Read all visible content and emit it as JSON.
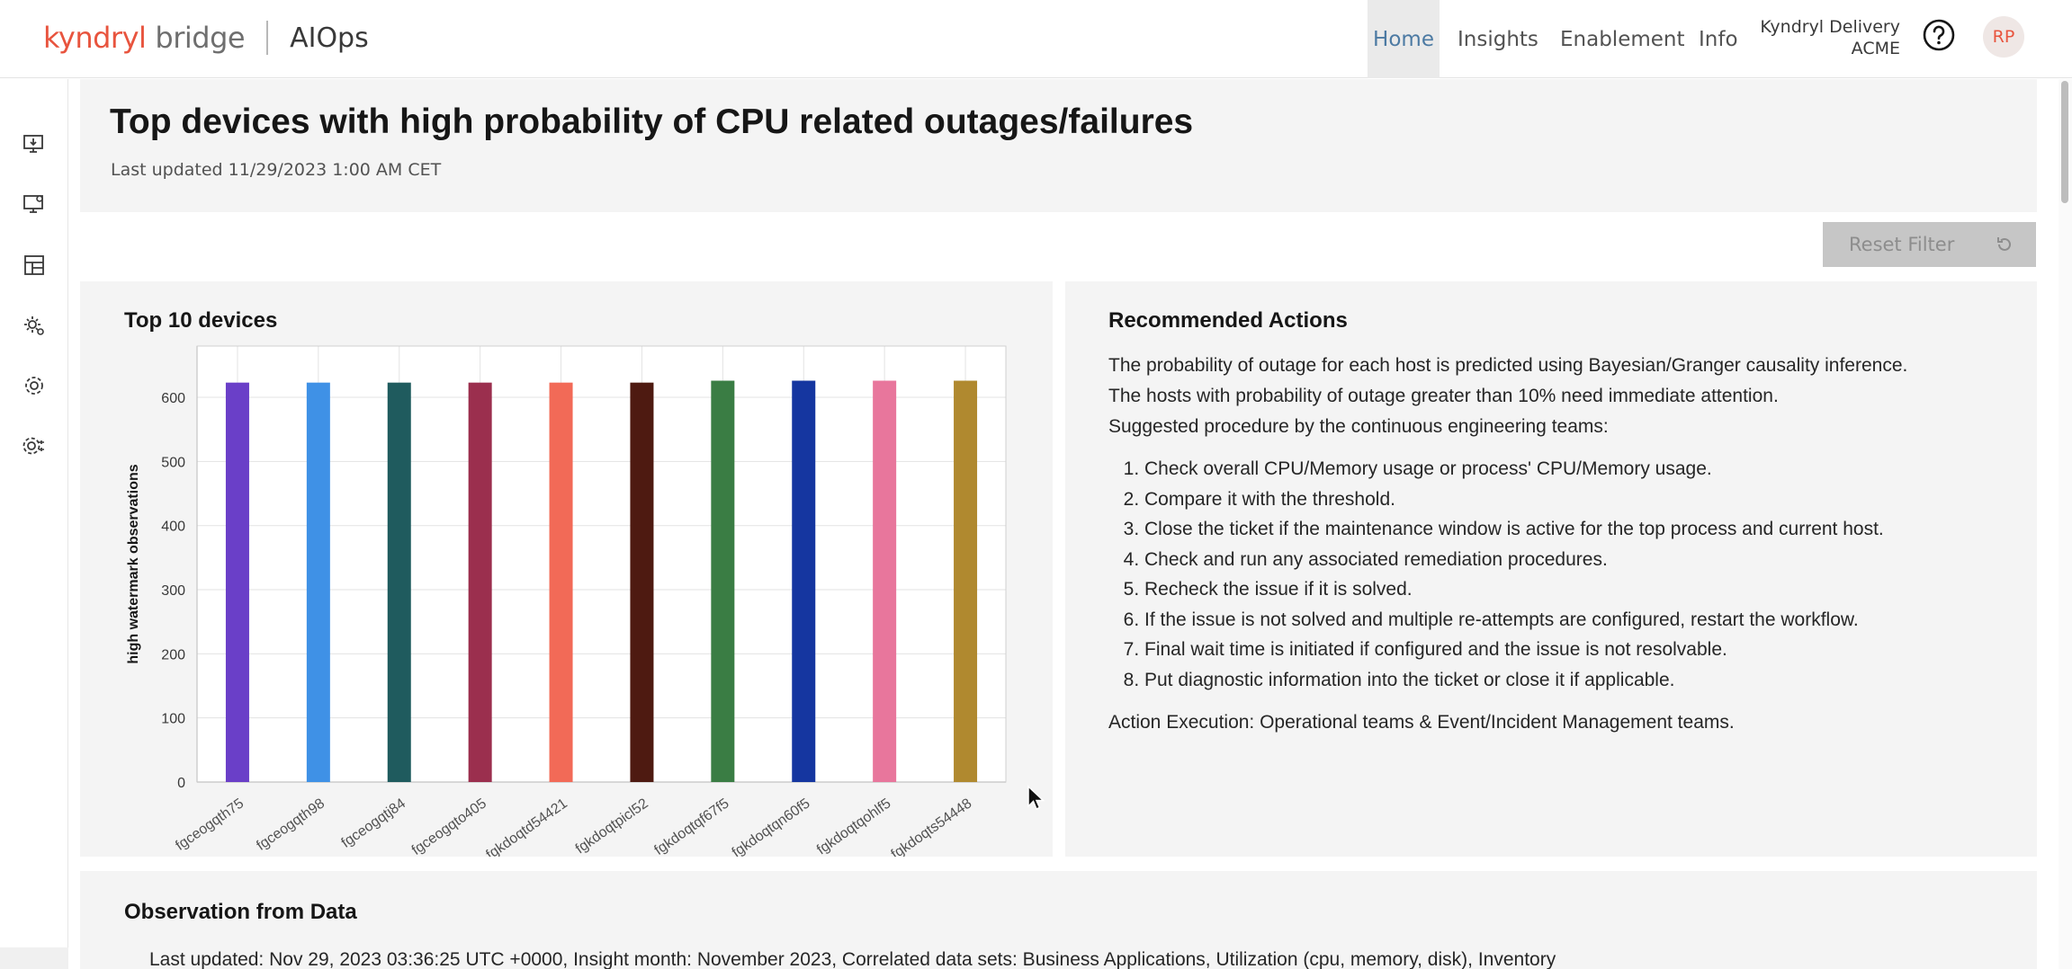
{
  "header": {
    "brand_kyndryl": "kyndryl",
    "brand_bridge": "bridge",
    "app_name": "AIOps",
    "nav": [
      "Home",
      "Insights",
      "Enablement",
      "Info"
    ],
    "account_name": "Kyndryl Delivery",
    "account_org": "ACME",
    "avatar_initials": "RP",
    "accent_color": "#4c7aa3"
  },
  "siderail": {
    "icons": [
      "monitor-download-icon",
      "monitor-settings-icon",
      "dashboard-layout-icon",
      "settings-services-icon",
      "settings-icon",
      "settings-adjust-icon"
    ]
  },
  "page": {
    "title": "Top devices with high probability of CPU related outages/failures",
    "last_updated": "Last updated 11/29/2023 1:00 AM CET",
    "reset_filter_label": "Reset Filter"
  },
  "chart_card": {
    "title": "Top 10 devices"
  },
  "chart_data": {
    "type": "bar",
    "title": "Top 10 devices",
    "xlabel": "",
    "ylabel": "high watermark observations",
    "ylim": [
      0,
      680
    ],
    "yticks": [
      0,
      100,
      200,
      300,
      400,
      500,
      600
    ],
    "grid": true,
    "categories": [
      "fgceogqth75",
      "fgceogqth98",
      "fgceogqtj84",
      "fgceogqto405",
      "fgkdoqtd54421",
      "fgkdoqtpicl52",
      "fgkdoqtqf67f5",
      "fgkdoqtqn60f5",
      "fgkdoqtqohlf5",
      "fgkdoqts54448"
    ],
    "values": [
      623,
      623,
      623,
      623,
      623,
      623,
      626,
      626,
      626,
      626
    ],
    "colors": [
      "#6a3fc8",
      "#3f91e6",
      "#1f5b5e",
      "#9b2f4e",
      "#f26a57",
      "#4e1a11",
      "#3a7d44",
      "#1536a0",
      "#e8769c",
      "#b0892f"
    ]
  },
  "actions": {
    "title": "Recommended Actions",
    "intro": [
      "The probability of outage for each host is predicted using Bayesian/Granger causality inference.",
      "The hosts with probability of outage greater than 10% need immediate attention.",
      "Suggested procedure by the continuous engineering teams:"
    ],
    "steps": [
      "Check overall CPU/Memory usage or process' CPU/Memory usage.",
      "Compare it with the threshold.",
      "Close the ticket if the maintenance window is active for the top process and current host.",
      "Check and run any associated remediation procedures.",
      "Recheck the issue if it is solved.",
      "If the issue is not solved and multiple re-attempts are configured, restart the workflow.",
      "Final wait time is initiated if configured and the issue is not resolvable.",
      "Put diagnostic information into the ticket or close it if applicable."
    ],
    "execution": "Action Execution: Operational teams & Event/Incident Management teams."
  },
  "observation": {
    "title": "Observation from Data",
    "text": "Last updated: Nov 29, 2023 03:36:25 UTC +0000, Insight month: November 2023, Correlated data sets: Business Applications, Utilization (cpu, memory, disk), Inventory"
  }
}
